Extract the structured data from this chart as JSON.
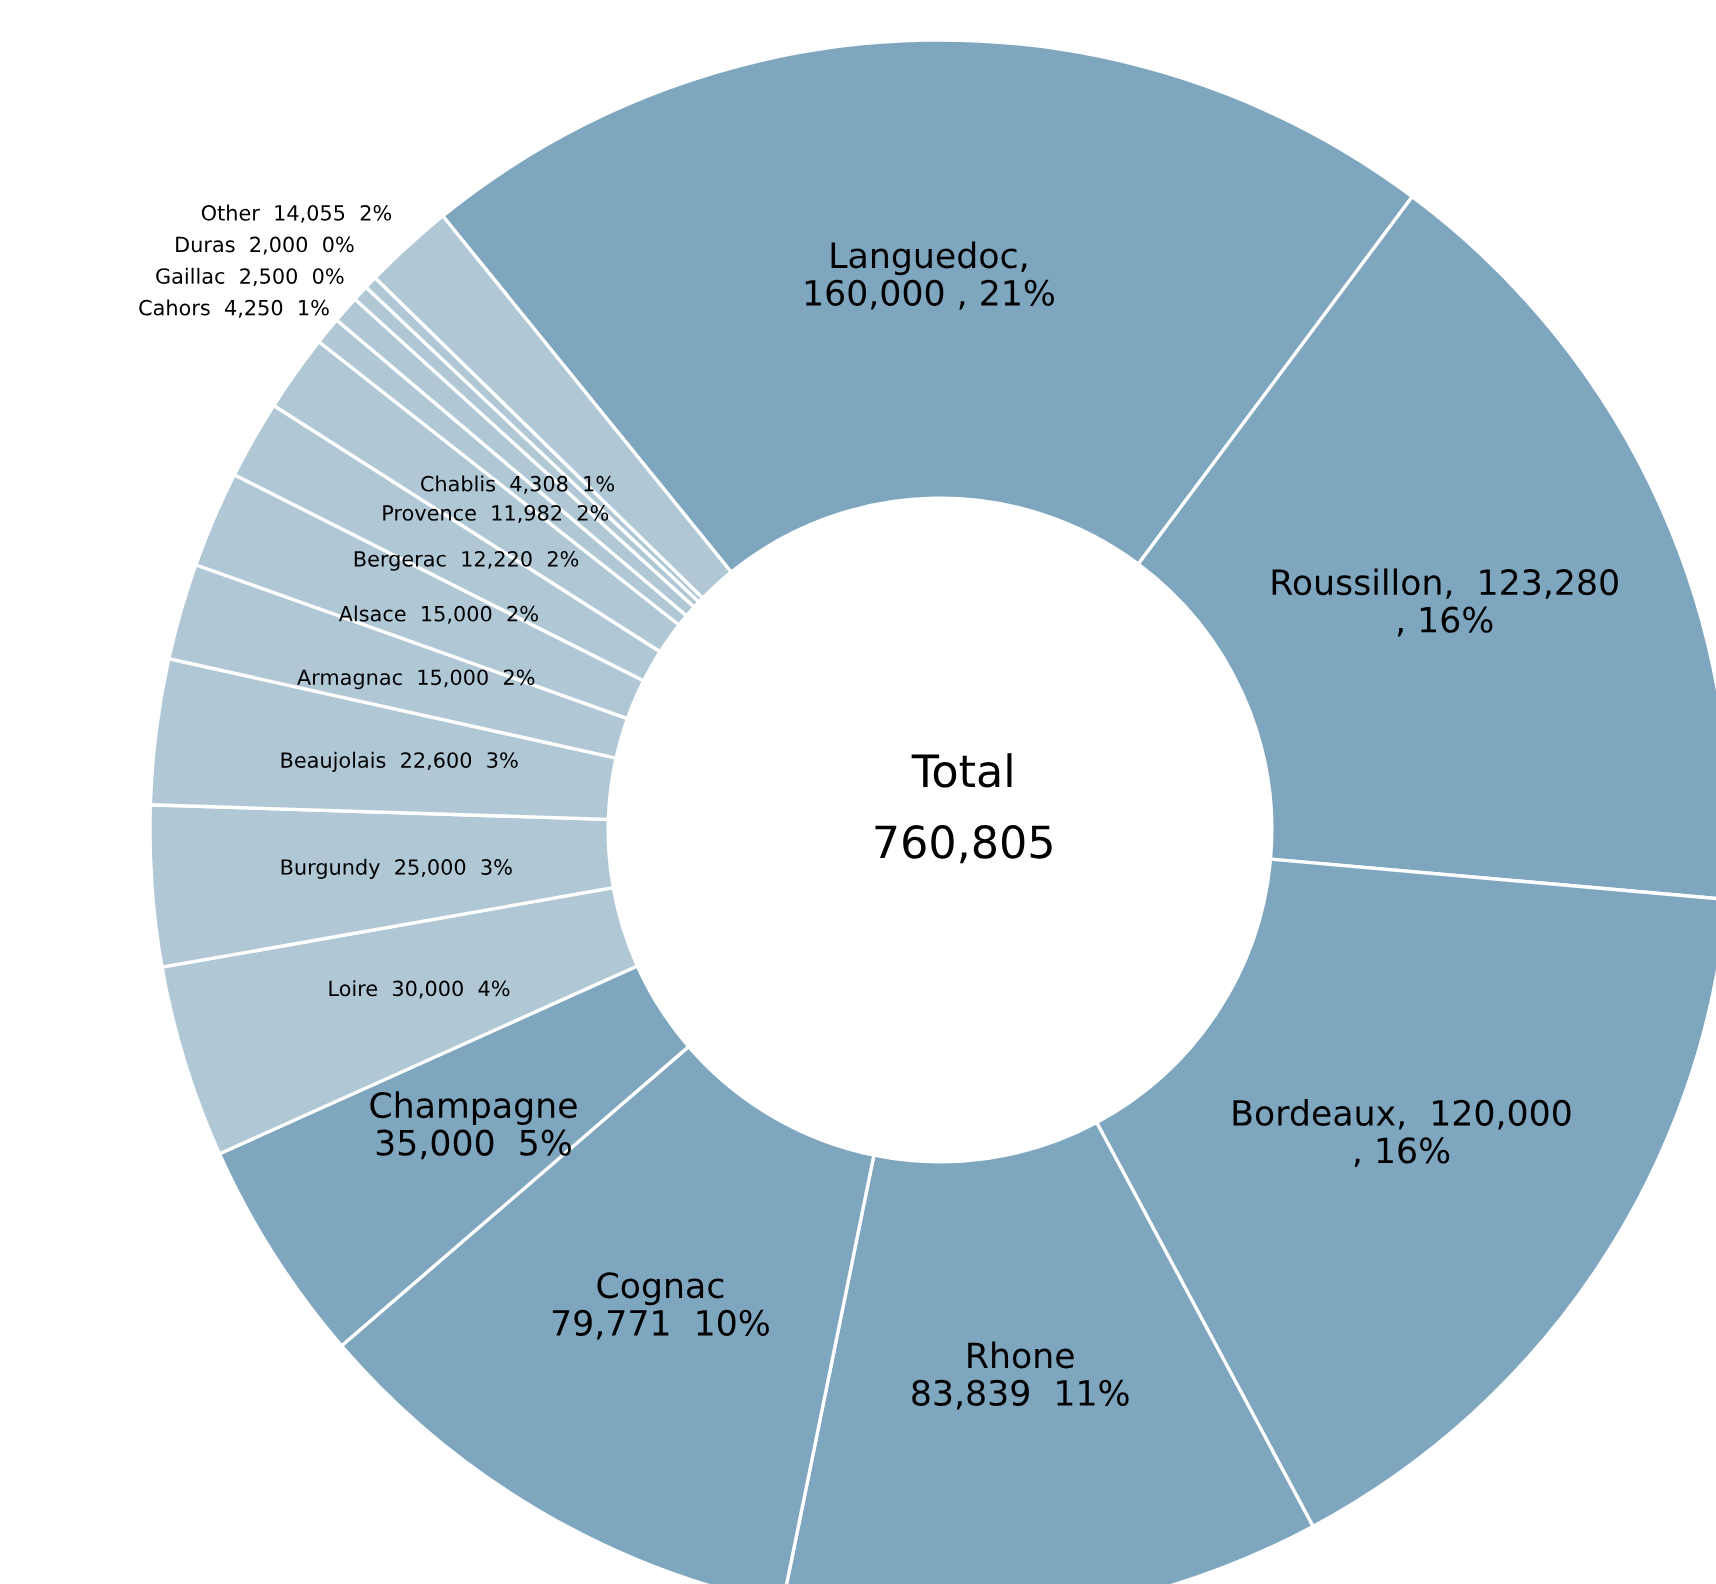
{
  "chart_data": {
    "type": "donut",
    "categories": [
      "Languedoc",
      "Roussillon",
      "Bordeaux",
      "Rhone",
      "Cognac",
      "Champagne",
      "Loire",
      "Burgundy",
      "Beaujolais",
      "Armagnac",
      "Alsace",
      "Bergerac",
      "Provence",
      "Chablis",
      "Cahors",
      "Gaillac",
      "Duras",
      "Other"
    ],
    "values": [
      160000,
      123280,
      120000,
      83839,
      79771,
      35000,
      30000,
      25000,
      22600,
      15000,
      15000,
      12220,
      11982,
      4308,
      4250,
      2500,
      2000,
      14055
    ],
    "value_labels": [
      ",\n160,000 , 21%",
      ",  123,280\n, 16%",
      ",  120,000\n, 16%",
      "\n83,839  11%",
      "\n79,771  10%",
      "\n35,000  5%",
      "  30,000  4%",
      "  25,000  3%",
      "  22,600  3%",
      "  15,000  2%",
      "  15,000  2%",
      "  12,220  2%",
      "  11,982  2%",
      "  4,308  1%",
      "  4,250  1%",
      "  2,500  0%",
      "  2,000  0%",
      "  14,055  2%"
    ],
    "colors": [
      "#7ea6bf",
      "#7ea6bf",
      "#7ea6bf",
      "#7ea6bf",
      "#7ea6bf",
      "#7ea6bf",
      "#b0c8d6",
      "#b0c8d6",
      "#b0c8d6",
      "#b0c8d6",
      "#b0c8d6",
      "#b0c8d6",
      "#b0c8d6",
      "#b0c8d6",
      "#b0c8d6",
      "#b0c8d6",
      "#b0c8d6",
      "#b0c8d6"
    ],
    "annotations": [
      "Total",
      "760,805"
    ]
  }
}
